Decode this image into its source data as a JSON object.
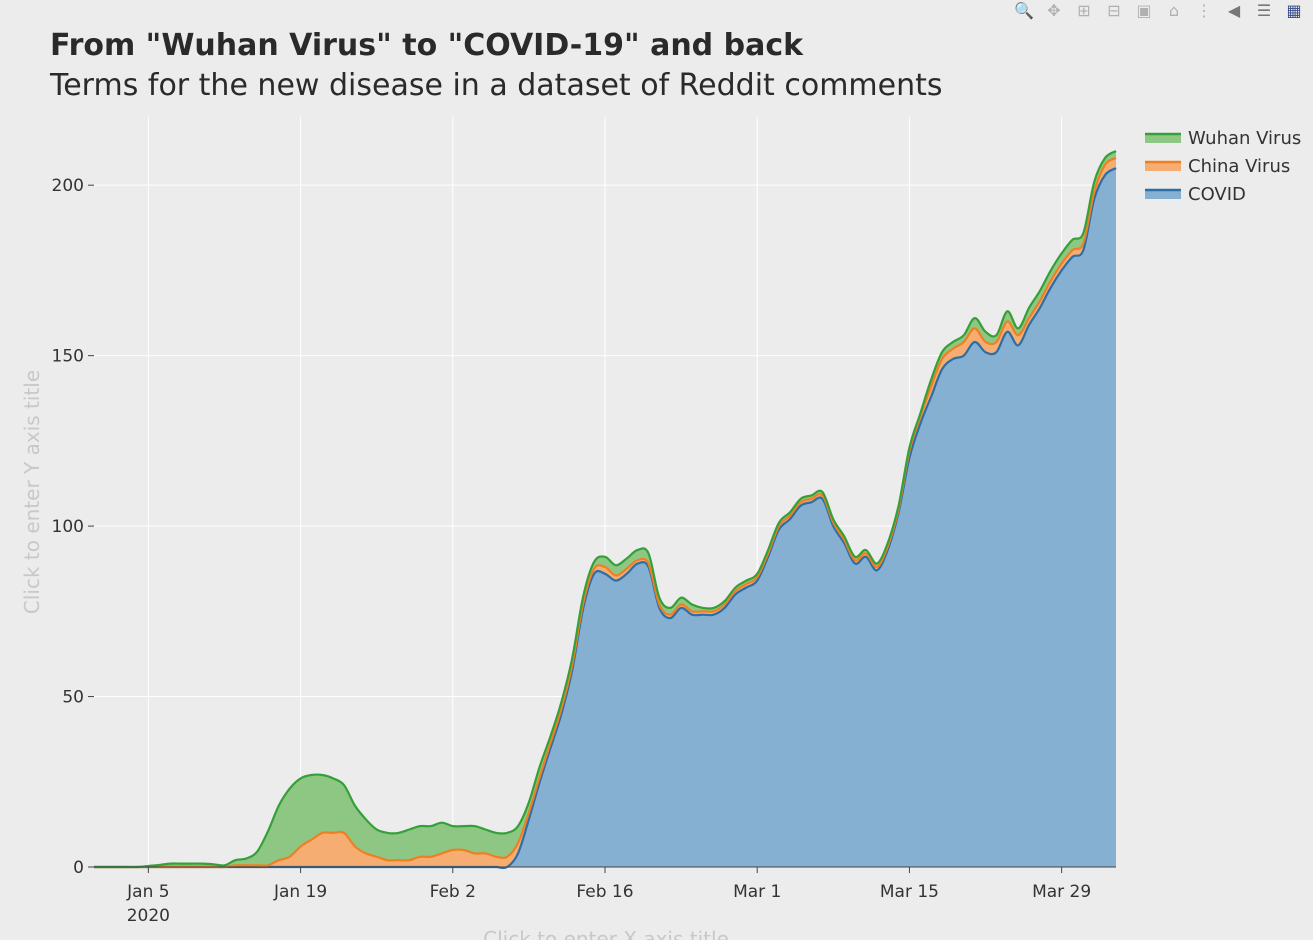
{
  "chart_data": {
    "type": "area",
    "stacked": true,
    "title": "From \"Wuhan Virus\" to \"COVID-19\" and back",
    "subtitle": "Terms for the new disease in a dataset of Reddit comments",
    "xlabel_placeholder": "Click to enter X axis title",
    "ylabel_placeholder": "Click to enter Y axis title",
    "x_range": [
      "2019-12-31",
      "2020-04-03"
    ],
    "ylim": [
      0,
      220
    ],
    "y_ticks": [
      0,
      50,
      100,
      150,
      200
    ],
    "x_ticks": [
      {
        "date": "2020-01-05",
        "label": "Jan 5",
        "sublabel": "2020"
      },
      {
        "date": "2020-01-19",
        "label": "Jan 19",
        "sublabel": ""
      },
      {
        "date": "2020-02-02",
        "label": "Feb 2",
        "sublabel": ""
      },
      {
        "date": "2020-02-16",
        "label": "Feb 16",
        "sublabel": ""
      },
      {
        "date": "2020-03-01",
        "label": "Mar 1",
        "sublabel": ""
      },
      {
        "date": "2020-03-15",
        "label": "Mar 15",
        "sublabel": ""
      },
      {
        "date": "2020-03-29",
        "label": "Mar 29",
        "sublabel": ""
      }
    ],
    "grid": true,
    "legend_position": "top-right",
    "dates": [
      "2019-12-31",
      "2020-01-01",
      "2020-01-02",
      "2020-01-03",
      "2020-01-04",
      "2020-01-05",
      "2020-01-06",
      "2020-01-07",
      "2020-01-08",
      "2020-01-09",
      "2020-01-10",
      "2020-01-11",
      "2020-01-12",
      "2020-01-13",
      "2020-01-14",
      "2020-01-15",
      "2020-01-16",
      "2020-01-17",
      "2020-01-18",
      "2020-01-19",
      "2020-01-20",
      "2020-01-21",
      "2020-01-22",
      "2020-01-23",
      "2020-01-24",
      "2020-01-25",
      "2020-01-26",
      "2020-01-27",
      "2020-01-28",
      "2020-01-29",
      "2020-01-30",
      "2020-01-31",
      "2020-02-01",
      "2020-02-02",
      "2020-02-03",
      "2020-02-04",
      "2020-02-05",
      "2020-02-06",
      "2020-02-07",
      "2020-02-08",
      "2020-02-09",
      "2020-02-10",
      "2020-02-11",
      "2020-02-12",
      "2020-02-13",
      "2020-02-14",
      "2020-02-15",
      "2020-02-16",
      "2020-02-17",
      "2020-02-18",
      "2020-02-19",
      "2020-02-20",
      "2020-02-21",
      "2020-02-22",
      "2020-02-23",
      "2020-02-24",
      "2020-02-25",
      "2020-02-26",
      "2020-02-27",
      "2020-02-28",
      "2020-02-29",
      "2020-03-01",
      "2020-03-02",
      "2020-03-03",
      "2020-03-04",
      "2020-03-05",
      "2020-03-06",
      "2020-03-07",
      "2020-03-08",
      "2020-03-09",
      "2020-03-10",
      "2020-03-11",
      "2020-03-12",
      "2020-03-13",
      "2020-03-14",
      "2020-03-15",
      "2020-03-16",
      "2020-03-17",
      "2020-03-18",
      "2020-03-19",
      "2020-03-20",
      "2020-03-21",
      "2020-03-22",
      "2020-03-23",
      "2020-03-24",
      "2020-03-25",
      "2020-03-26",
      "2020-03-27",
      "2020-03-28",
      "2020-03-29",
      "2020-03-30",
      "2020-03-31",
      "2020-04-01",
      "2020-04-02",
      "2020-04-03"
    ],
    "series": [
      {
        "name": "COVID",
        "color": "#2e6ea6",
        "fill": "#85b0d2",
        "values": [
          0,
          0,
          0,
          0,
          0,
          0,
          0,
          0,
          0,
          0,
          0,
          0,
          0,
          0,
          0,
          0,
          0,
          0,
          0,
          0,
          0,
          0,
          0,
          0,
          0,
          0,
          0,
          0,
          0,
          0,
          0,
          0,
          0,
          0,
          0,
          0,
          0,
          0,
          0,
          4,
          14,
          25,
          35,
          45,
          58,
          76,
          86,
          86,
          84,
          86,
          89,
          88,
          76,
          73,
          76,
          74,
          74,
          74,
          76,
          80,
          82,
          84,
          91,
          99,
          102,
          106,
          107,
          108,
          100,
          95,
          89,
          91,
          87,
          93,
          104,
          120,
          130,
          138,
          146,
          149,
          150,
          154,
          151,
          151,
          157,
          153,
          159,
          164,
          170,
          175,
          179,
          181,
          196,
          203,
          205
        ]
      },
      {
        "name": "China Virus",
        "color": "#f07f22",
        "fill": "#f5ad72",
        "values": [
          0,
          0,
          0,
          0,
          0,
          0,
          0,
          0,
          0,
          0,
          0,
          0,
          0,
          0.5,
          0.5,
          0.5,
          0.5,
          2,
          3,
          6,
          8,
          10,
          10,
          10,
          6,
          4,
          3,
          2,
          2,
          2,
          3,
          3,
          4,
          5,
          5,
          4,
          4,
          3,
          3,
          3,
          2,
          1.5,
          1.5,
          1.5,
          1.5,
          1.5,
          1.5,
          2,
          1.5,
          1.5,
          1,
          1,
          1,
          1,
          1,
          1,
          1,
          1,
          1,
          1,
          1,
          1,
          1,
          1,
          1,
          1,
          1,
          1,
          1,
          1,
          1,
          1,
          1,
          1,
          1,
          2,
          2,
          3,
          3,
          3,
          4,
          4,
          3,
          3,
          3,
          3,
          2,
          2,
          2,
          2,
          2,
          2,
          2,
          3,
          3
        ]
      },
      {
        "name": "Wuhan Virus",
        "color": "#35a037",
        "fill": "#8ec783",
        "values": [
          0,
          0,
          0,
          0,
          0,
          0.3,
          0.6,
          1,
          1,
          1,
          1,
          0.8,
          0.5,
          1.5,
          2,
          4,
          10,
          16,
          20,
          20,
          19,
          17,
          16,
          14,
          12,
          10,
          8,
          8,
          8,
          9,
          9,
          9,
          9,
          7,
          7,
          8,
          7,
          7,
          7,
          5,
          3,
          3,
          2,
          2,
          2,
          2,
          2,
          3,
          3,
          3,
          3,
          3,
          2,
          2,
          2,
          2,
          1,
          1,
          1,
          1,
          1,
          1,
          1,
          1,
          1,
          1,
          1,
          1,
          1,
          1,
          1,
          1,
          1,
          1,
          1,
          1,
          1,
          2,
          2,
          2,
          2,
          3,
          3,
          2,
          3,
          2,
          3,
          3,
          3,
          3,
          3,
          3,
          3,
          2,
          2
        ]
      }
    ]
  },
  "modebar": {
    "buttons": [
      "zoom-icon",
      "pan-icon",
      "zoom-in-icon",
      "zoom-out-icon",
      "autoscale-icon",
      "reset-axes-icon",
      "spike-lines-icon",
      "hover-closest-icon",
      "hover-compare-icon",
      "plotly-logo-icon"
    ]
  }
}
